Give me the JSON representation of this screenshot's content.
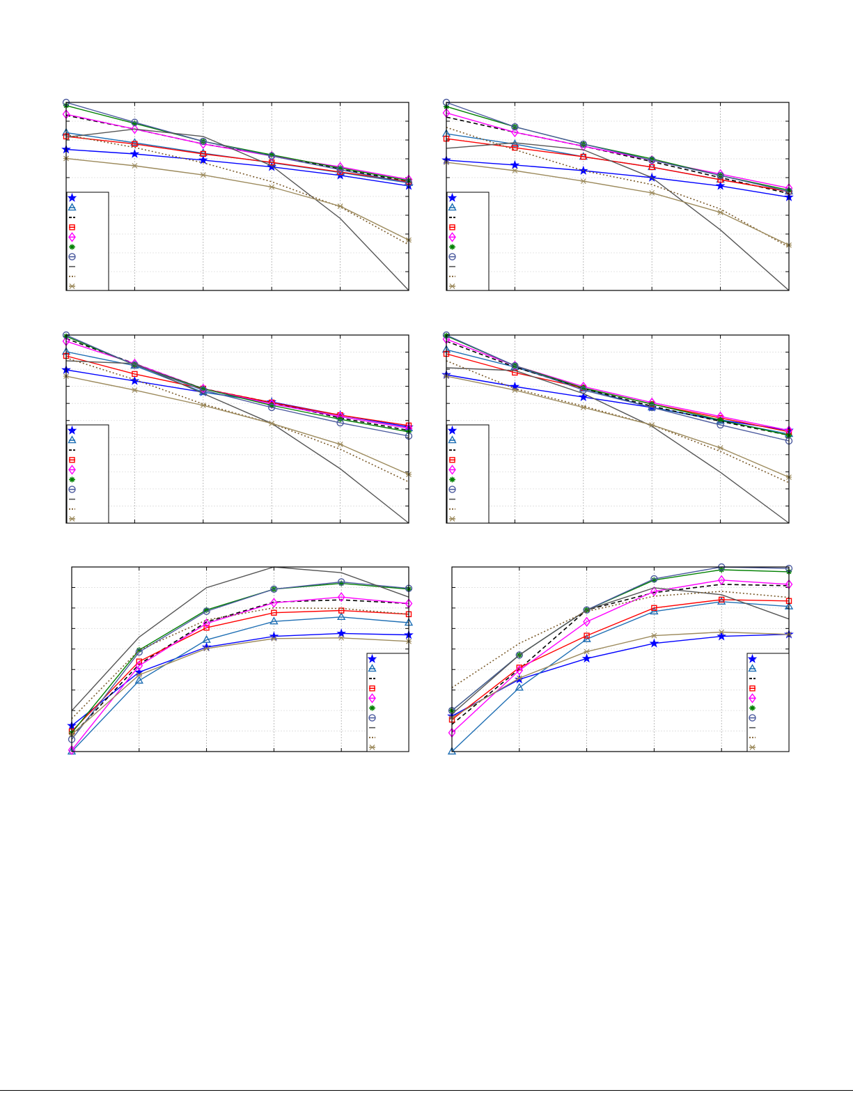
{
  "series_styles": [
    {
      "color": "#0000ff",
      "marker": "star",
      "line": "solid"
    },
    {
      "color": "#1f6fb4",
      "marker": "triangle",
      "line": "solid"
    },
    {
      "color": "#000000",
      "marker": "none",
      "line": "dashed"
    },
    {
      "color": "#ff0000",
      "marker": "square",
      "line": "solid"
    },
    {
      "color": "#ff00ff",
      "marker": "diamond",
      "line": "solid"
    },
    {
      "color": "#008000",
      "marker": "asterisk",
      "line": "solid"
    },
    {
      "color": "#4b5a9e",
      "marker": "circle",
      "line": "solid"
    },
    {
      "color": "#555555",
      "marker": "none",
      "line": "solid"
    },
    {
      "color": "#7a5a2a",
      "marker": "none",
      "line": "dotted"
    },
    {
      "color": "#9c8a5c",
      "marker": "x",
      "line": "solid"
    }
  ],
  "chart_data": [
    {
      "type": "line",
      "x": [
        1,
        2,
        3,
        4,
        5,
        6
      ],
      "ylim": [
        0,
        1
      ],
      "grid": true,
      "legend": "bottom-left",
      "series": [
        {
          "values": [
            0.75,
            0.726,
            0.693,
            0.657,
            0.612,
            0.556
          ]
        },
        {
          "values": [
            0.839,
            0.785,
            0.73,
            0.679,
            0.627,
            0.572
          ]
        },
        {
          "values": [
            0.931,
            0.858,
            0.779,
            0.718,
            0.645,
            0.578
          ]
        },
        {
          "values": [
            0.819,
            0.779,
            0.726,
            0.681,
            0.63,
            0.578
          ]
        },
        {
          "values": [
            0.937,
            0.858,
            0.779,
            0.715,
            0.657,
            0.59
          ]
        },
        {
          "values": [
            0.983,
            0.888,
            0.793,
            0.721,
            0.651,
            0.584
          ]
        },
        {
          "values": [
            1.0,
            0.894,
            0.793,
            0.715,
            0.642,
            0.572
          ]
        },
        {
          "values": [
            0.815,
            0.858,
            0.819,
            0.663,
            0.383,
            0.0
          ]
        },
        {
          "values": [
            0.827,
            0.76,
            0.679,
            0.578,
            0.444,
            0.243
          ]
        },
        {
          "values": [
            0.702,
            0.663,
            0.614,
            0.55,
            0.448,
            0.268
          ]
        }
      ]
    },
    {
      "type": "line",
      "x": [
        1,
        2,
        3,
        4,
        5,
        6
      ],
      "ylim": [
        0,
        1
      ],
      "grid": true,
      "legend": "bottom-left",
      "series": [
        {
          "values": [
            0.693,
            0.667,
            0.637,
            0.6,
            0.556,
            0.496
          ]
        },
        {
          "values": [
            0.833,
            0.778,
            0.711,
            0.656,
            0.589,
            0.526
          ]
        },
        {
          "values": [
            0.922,
            0.841,
            0.767,
            0.685,
            0.6,
            0.515
          ]
        },
        {
          "values": [
            0.807,
            0.759,
            0.711,
            0.656,
            0.589,
            0.526
          ]
        },
        {
          "values": [
            0.944,
            0.841,
            0.767,
            0.693,
            0.619,
            0.544
          ]
        },
        {
          "values": [
            0.978,
            0.87,
            0.778,
            0.7,
            0.611,
            0.533
          ]
        },
        {
          "values": [
            1.0,
            0.87,
            0.778,
            0.693,
            0.611,
            0.526
          ]
        },
        {
          "values": [
            0.756,
            0.785,
            0.748,
            0.6,
            0.322,
            0.0
          ]
        },
        {
          "values": [
            0.867,
            0.748,
            0.637,
            0.563,
            0.433,
            0.23
          ]
        },
        {
          "values": [
            0.681,
            0.637,
            0.581,
            0.519,
            0.415,
            0.241
          ]
        }
      ]
    },
    {
      "type": "line",
      "x": [
        1,
        2,
        3,
        4,
        5,
        6
      ],
      "ylim": [
        0,
        1
      ],
      "grid": true,
      "legend": "bottom-left",
      "series": [
        {
          "values": [
            0.815,
            0.756,
            0.696,
            0.644,
            0.574,
            0.511
          ]
        },
        {
          "values": [
            0.911,
            0.837,
            0.696,
            0.641,
            0.567,
            0.504
          ]
        },
        {
          "values": [
            0.981,
            0.848,
            0.715,
            0.641,
            0.559,
            0.493
          ]
        },
        {
          "values": [
            0.889,
            0.793,
            0.715,
            0.641,
            0.574,
            0.519
          ]
        },
        {
          "values": [
            0.967,
            0.848,
            0.715,
            0.633,
            0.567,
            0.504
          ]
        },
        {
          "values": [
            0.993,
            0.841,
            0.715,
            0.626,
            0.552,
            0.485
          ]
        },
        {
          "values": [
            1.0,
            0.841,
            0.707,
            0.615,
            0.533,
            0.463
          ]
        },
        {
          "values": [
            0.863,
            0.848,
            0.689,
            0.53,
            0.289,
            0.0
          ]
        },
        {
          "values": [
            0.878,
            0.763,
            0.633,
            0.53,
            0.393,
            0.219
          ]
        },
        {
          "values": [
            0.781,
            0.707,
            0.626,
            0.53,
            0.419,
            0.259
          ]
        }
      ]
    },
    {
      "type": "line",
      "x": [
        1,
        2,
        3,
        4,
        5,
        6
      ],
      "ylim": [
        0,
        1
      ],
      "grid": true,
      "legend": "bottom-left",
      "series": [
        {
          "values": [
            0.789,
            0.726,
            0.67,
            0.615,
            0.548,
            0.493
          ]
        },
        {
          "values": [
            0.922,
            0.83,
            0.715,
            0.615,
            0.544,
            0.474
          ]
        },
        {
          "values": [
            0.967,
            0.83,
            0.715,
            0.622,
            0.541,
            0.467
          ]
        },
        {
          "values": [
            0.9,
            0.8,
            0.719,
            0.633,
            0.559,
            0.485
          ]
        },
        {
          "values": [
            0.978,
            0.837,
            0.726,
            0.641,
            0.567,
            0.493
          ]
        },
        {
          "values": [
            0.996,
            0.837,
            0.719,
            0.633,
            0.548,
            0.467
          ]
        },
        {
          "values": [
            1.0,
            0.837,
            0.707,
            0.615,
            0.522,
            0.437
          ]
        },
        {
          "values": [
            0.826,
            0.811,
            0.689,
            0.515,
            0.27,
            0.0
          ]
        },
        {
          "values": [
            0.863,
            0.715,
            0.622,
            0.522,
            0.381,
            0.215
          ]
        },
        {
          "values": [
            0.781,
            0.707,
            0.615,
            0.522,
            0.4,
            0.244
          ]
        }
      ]
    },
    {
      "type": "line",
      "x": [
        1,
        2,
        3,
        4,
        5,
        6
      ],
      "ylim": [
        0,
        1
      ],
      "grid": true,
      "legend": "bottom-right",
      "series": [
        {
          "values": [
            0.14,
            0.43,
            0.566,
            0.624,
            0.64,
            0.632
          ]
        },
        {
          "values": [
            0.0,
            0.384,
            0.605,
            0.705,
            0.729,
            0.698
          ]
        },
        {
          "values": [
            0.085,
            0.473,
            0.702,
            0.81,
            0.822,
            0.802
          ]
        },
        {
          "values": [
            0.109,
            0.488,
            0.671,
            0.752,
            0.764,
            0.744
          ]
        },
        {
          "values": [
            0.008,
            0.465,
            0.694,
            0.806,
            0.837,
            0.802
          ]
        },
        {
          "values": [
            0.101,
            0.55,
            0.767,
            0.88,
            0.911,
            0.88
          ]
        },
        {
          "values": [
            0.066,
            0.539,
            0.76,
            0.88,
            0.919,
            0.884
          ]
        },
        {
          "values": [
            0.221,
            0.62,
            0.888,
            1.0,
            0.969,
            0.837
          ]
        },
        {
          "values": [
            0.178,
            0.55,
            0.713,
            0.779,
            0.775,
            0.744
          ]
        },
        {
          "values": [
            0.093,
            0.415,
            0.558,
            0.612,
            0.616,
            0.597
          ]
        }
      ]
    },
    {
      "type": "line",
      "x": [
        1,
        2,
        3,
        4,
        5,
        6
      ],
      "ylim": [
        0,
        1
      ],
      "grid": true,
      "legend": "bottom-right",
      "series": [
        {
          "values": [
            0.192,
            0.391,
            0.504,
            0.586,
            0.624,
            0.635
          ]
        },
        {
          "values": [
            0.0,
            0.346,
            0.609,
            0.759,
            0.812,
            0.786
          ]
        },
        {
          "values": [
            0.147,
            0.447,
            0.767,
            0.861,
            0.906,
            0.898
          ]
        },
        {
          "values": [
            0.173,
            0.455,
            0.628,
            0.778,
            0.823,
            0.816
          ]
        },
        {
          "values": [
            0.102,
            0.44,
            0.703,
            0.868,
            0.929,
            0.906
          ]
        },
        {
          "values": [
            0.222,
            0.523,
            0.767,
            0.929,
            0.985,
            0.974
          ]
        },
        {
          "values": [
            0.222,
            0.523,
            0.767,
            0.936,
            1.0,
            0.992
          ]
        },
        {
          "values": [
            0.203,
            0.523,
            0.767,
            0.887,
            0.85,
            0.718
          ]
        },
        {
          "values": [
            0.346,
            0.586,
            0.759,
            0.842,
            0.868,
            0.835
          ]
        },
        {
          "values": [
            0.184,
            0.398,
            0.541,
            0.628,
            0.647,
            0.635
          ]
        }
      ]
    }
  ]
}
